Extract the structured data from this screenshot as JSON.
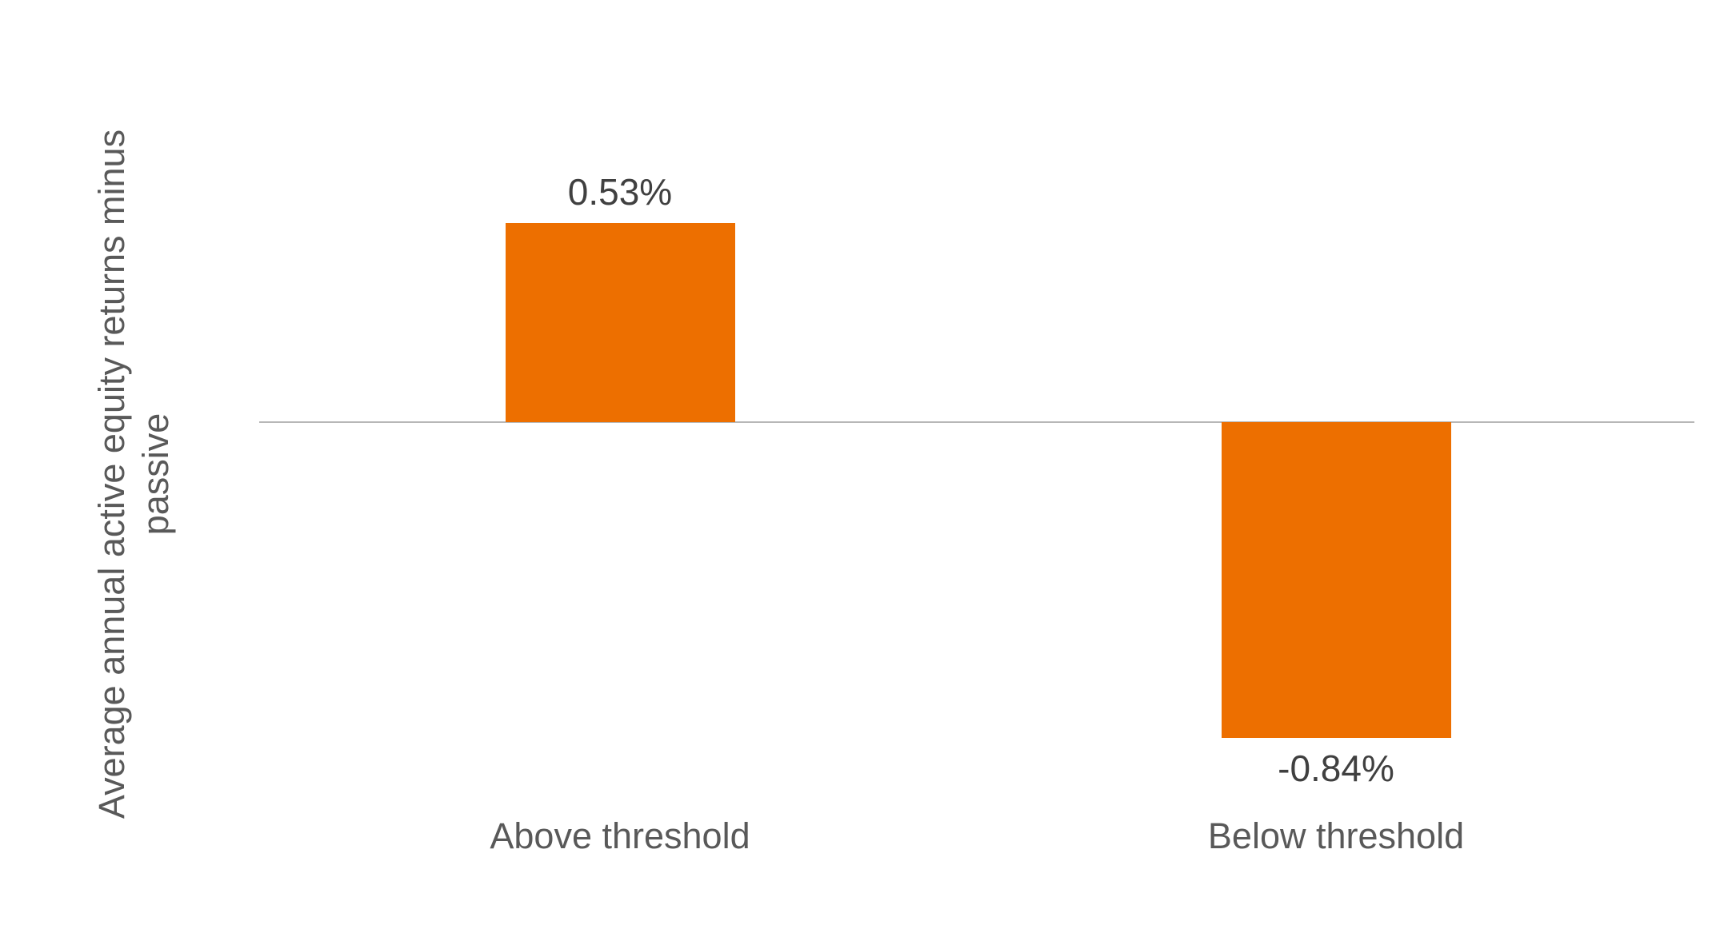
{
  "chart_data": {
    "type": "bar",
    "title": "",
    "xlabel": "",
    "ylabel": "Average annual active equity returns minus passive",
    "ylabel_lines": [
      "Average annual active equity returns minus",
      "passive"
    ],
    "categories": [
      "Above threshold",
      "Below threshold"
    ],
    "values": [
      0.53,
      -0.84
    ],
    "value_labels": [
      "0.53%",
      "-0.84%"
    ],
    "ylim": [
      -1.0,
      0.85
    ],
    "grid": false,
    "legend": "none",
    "colors": {
      "bar_fill": "#ED6F00",
      "baseline": "#B7B7B7",
      "value_label_text": "#404040",
      "axis_text": "#595959",
      "background": "#FFFFFF"
    }
  }
}
